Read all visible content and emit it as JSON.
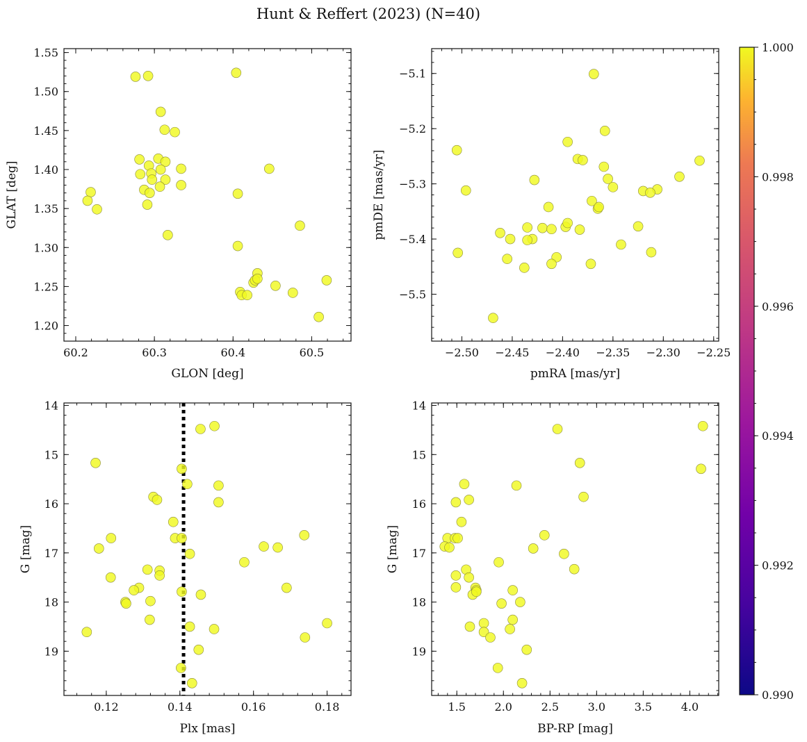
{
  "chart_data": {
    "type": "scatter",
    "title": "Hunt & Reffert (2023) (N=40)",
    "point_color": "#f0f921",
    "panels": [
      {
        "id": "glon-glat",
        "xlabel": "GLON [deg]",
        "ylabel": "GLAT [deg]",
        "xlim": [
          60.185,
          60.55
        ],
        "ylim": [
          1.18,
          1.555
        ],
        "y_inverted": false,
        "xticks": [
          60.2,
          60.3,
          60.4,
          60.5
        ],
        "xtick_labels": [
          "60.2",
          "60.3",
          "60.4",
          "60.5"
        ],
        "yticks": [
          1.2,
          1.25,
          1.3,
          1.35,
          1.4,
          1.45,
          1.5,
          1.55
        ],
        "ytick_labels": [
          "1.20",
          "1.25",
          "1.30",
          "1.35",
          "1.40",
          "1.45",
          "1.50",
          "1.55"
        ],
        "x": [
          60.276,
          60.292,
          60.404,
          60.308,
          60.313,
          60.326,
          60.281,
          60.305,
          60.314,
          60.293,
          60.308,
          60.334,
          60.446,
          60.282,
          60.296,
          60.297,
          60.314,
          60.219,
          60.307,
          60.334,
          60.287,
          60.294,
          60.406,
          60.215,
          60.291,
          60.227,
          60.485,
          60.317,
          60.406,
          60.431,
          60.519,
          60.426,
          60.454,
          60.409,
          60.476,
          60.411,
          60.418,
          60.509,
          60.428,
          60.431
        ],
        "y": [
          1.519,
          1.52,
          1.524,
          1.474,
          1.451,
          1.448,
          1.413,
          1.414,
          1.41,
          1.405,
          1.4,
          1.401,
          1.401,
          1.394,
          1.395,
          1.387,
          1.387,
          1.371,
          1.378,
          1.38,
          1.374,
          1.37,
          1.369,
          1.36,
          1.355,
          1.349,
          1.328,
          1.316,
          1.302,
          1.267,
          1.258,
          1.255,
          1.251,
          1.243,
          1.242,
          1.239,
          1.239,
          1.211,
          1.258,
          1.26
        ]
      },
      {
        "id": "pmra-pmde",
        "xlabel": "pmRA [mas/yr]",
        "ylabel": "pmDE [mas/yr]",
        "xlim": [
          -2.53,
          -2.245
        ],
        "ylim": [
          -5.585,
          -5.055
        ],
        "y_inverted": false,
        "xticks": [
          -2.5,
          -2.45,
          -2.4,
          -2.35,
          -2.3,
          -2.25
        ],
        "xtick_labels": [
          "−2.50",
          "−2.45",
          "−2.40",
          "−2.35",
          "−2.30",
          "−2.25"
        ],
        "yticks": [
          -5.5,
          -5.4,
          -5.3,
          -5.2,
          -5.1
        ],
        "ytick_labels": [
          "−5.5",
          "−5.4",
          "−5.3",
          "−5.2",
          "−5.1"
        ],
        "x": [
          -2.369,
          -2.358,
          -2.395,
          -2.385,
          -2.38,
          -2.359,
          -2.355,
          -2.35,
          -2.371,
          -2.365,
          -2.264,
          -2.284,
          -2.306,
          -2.32,
          -2.313,
          -2.505,
          -2.496,
          -2.428,
          -2.414,
          -2.435,
          -2.42,
          -2.411,
          -2.397,
          -2.395,
          -2.383,
          -2.462,
          -2.452,
          -2.43,
          -2.406,
          -2.435,
          -2.455,
          -2.504,
          -2.411,
          -2.342,
          -2.325,
          -2.312,
          -2.372,
          -2.438,
          -2.469,
          -2.364
        ],
        "y": [
          -5.101,
          -5.204,
          -5.224,
          -5.255,
          -5.257,
          -5.269,
          -5.291,
          -5.306,
          -5.331,
          -5.345,
          -5.258,
          -5.287,
          -5.31,
          -5.313,
          -5.316,
          -5.239,
          -5.312,
          -5.293,
          -5.342,
          -5.379,
          -5.38,
          -5.382,
          -5.378,
          -5.371,
          -5.383,
          -5.389,
          -5.4,
          -5.4,
          -5.433,
          -5.402,
          -5.436,
          -5.425,
          -5.445,
          -5.41,
          -5.377,
          -5.424,
          -5.445,
          -5.452,
          -5.543,
          -5.342
        ]
      },
      {
        "id": "plx-g",
        "xlabel": "Plx [mas]",
        "ylabel": "G [mag]",
        "xlim": [
          0.1085,
          0.1865
        ],
        "ylim": [
          19.9,
          13.95
        ],
        "y_inverted": true,
        "vline": 0.141,
        "xticks": [
          0.12,
          0.14,
          0.16,
          0.18
        ],
        "xtick_labels": [
          "0.12",
          "0.14",
          "0.16",
          "0.18"
        ],
        "yticks": [
          14,
          15,
          16,
          17,
          18,
          19
        ],
        "ytick_labels": [
          "14",
          "15",
          "16",
          "17",
          "18",
          "19"
        ],
        "x": [
          0.1494,
          0.1456,
          0.1171,
          0.1405,
          0.142,
          0.1505,
          0.1505,
          0.1328,
          0.1338,
          0.1382,
          0.1213,
          0.1387,
          0.1405,
          0.1738,
          0.1628,
          0.1666,
          0.1427,
          0.118,
          0.1575,
          0.1312,
          0.1345,
          0.1345,
          0.1212,
          0.1289,
          0.1275,
          0.169,
          0.1405,
          0.1457,
          0.1252,
          0.1254,
          0.1318,
          0.18,
          0.1427,
          0.1493,
          0.1451,
          0.1147,
          0.174,
          0.1403,
          0.1433,
          0.132
        ],
        "y": [
          14.42,
          14.48,
          15.17,
          15.29,
          15.6,
          15.63,
          15.97,
          15.86,
          15.92,
          16.37,
          16.7,
          16.7,
          16.7,
          16.64,
          16.87,
          16.89,
          17.02,
          16.91,
          17.19,
          17.34,
          17.36,
          17.46,
          17.5,
          17.71,
          17.76,
          17.71,
          17.79,
          17.85,
          18.0,
          18.03,
          18.36,
          18.43,
          18.5,
          18.55,
          18.97,
          18.61,
          18.72,
          19.34,
          19.65,
          17.98
        ]
      },
      {
        "id": "bprp-g",
        "xlabel": "BP-RP [mag]",
        "ylabel": "G [mag]",
        "xlim": [
          1.23,
          4.31
        ],
        "ylim": [
          19.9,
          13.95
        ],
        "y_inverted": true,
        "xticks": [
          1.5,
          2.0,
          2.5,
          3.0,
          3.5,
          4.0
        ],
        "xtick_labels": [
          "1.5",
          "2.0",
          "2.5",
          "3.0",
          "3.5",
          "4.0"
        ],
        "yticks": [
          14,
          15,
          16,
          17,
          18,
          19
        ],
        "ytick_labels": [
          "14",
          "15",
          "16",
          "17",
          "18",
          "19"
        ],
        "x": [
          4.14,
          2.58,
          2.82,
          4.12,
          1.58,
          2.14,
          1.49,
          1.63,
          2.86,
          1.55,
          1.4,
          1.48,
          1.51,
          2.44,
          1.37,
          1.42,
          2.65,
          2.32,
          1.95,
          1.6,
          1.49,
          1.63,
          2.76,
          1.7,
          1.49,
          1.71,
          1.67,
          2.1,
          1.71,
          1.98,
          2.18,
          2.1,
          1.79,
          1.64,
          2.07,
          1.79,
          1.86,
          2.25,
          1.94,
          2.2
        ],
        "y": [
          14.42,
          14.48,
          15.17,
          15.29,
          15.6,
          15.63,
          15.97,
          15.92,
          15.86,
          16.37,
          16.7,
          16.7,
          16.7,
          16.64,
          16.87,
          16.89,
          17.02,
          16.91,
          17.19,
          17.34,
          17.46,
          17.5,
          17.33,
          17.71,
          17.7,
          17.76,
          17.85,
          17.76,
          17.79,
          18.03,
          18.0,
          18.36,
          18.43,
          18.5,
          18.55,
          18.61,
          18.72,
          18.97,
          19.34,
          19.65
        ]
      }
    ],
    "colorbar": {
      "colormap": "plasma",
      "min": 0.99,
      "max": 1.0,
      "ticks": [
        0.99,
        0.992,
        0.994,
        0.996,
        0.998,
        1.0
      ],
      "tick_labels": [
        "0.990",
        "0.992",
        "0.994",
        "0.996",
        "0.998",
        "1.000"
      ]
    }
  }
}
